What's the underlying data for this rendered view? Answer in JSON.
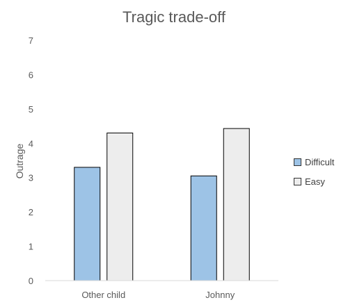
{
  "chart_data": {
    "type": "bar",
    "title": "Tragic trade-off",
    "ylabel": "Outrage",
    "xlabel": "",
    "ylim": [
      0,
      7
    ],
    "yticks": [
      0,
      1,
      2,
      3,
      4,
      5,
      6,
      7
    ],
    "categories": [
      "Other child",
      "Johnny"
    ],
    "series": [
      {
        "name": "Difficult",
        "values": [
          3.3,
          3.05
        ],
        "color": "#9DC3E6"
      },
      {
        "name": "Easy",
        "values": [
          4.3,
          4.43
        ],
        "color": "#EDEDED"
      }
    ],
    "grid": false,
    "legend_position": "right",
    "bar_outline": "#000000"
  }
}
